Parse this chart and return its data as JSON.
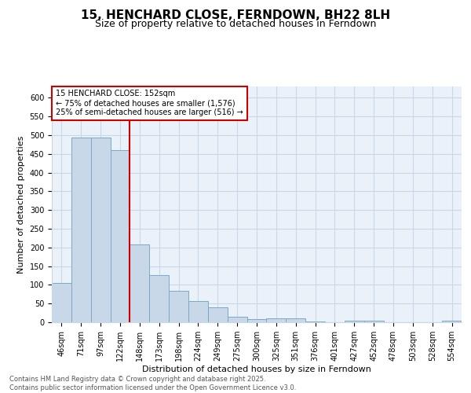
{
  "title": "15, HENCHARD CLOSE, FERNDOWN, BH22 8LH",
  "subtitle": "Size of property relative to detached houses in Ferndown",
  "xlabel": "Distribution of detached houses by size in Ferndown",
  "ylabel": "Number of detached properties",
  "categories": [
    "46sqm",
    "71sqm",
    "97sqm",
    "122sqm",
    "148sqm",
    "173sqm",
    "198sqm",
    "224sqm",
    "249sqm",
    "275sqm",
    "300sqm",
    "325sqm",
    "351sqm",
    "376sqm",
    "401sqm",
    "427sqm",
    "452sqm",
    "478sqm",
    "503sqm",
    "528sqm",
    "554sqm"
  ],
  "values": [
    106,
    493,
    493,
    460,
    208,
    125,
    83,
    57,
    40,
    14,
    9,
    11,
    11,
    3,
    0,
    5,
    5,
    0,
    0,
    0,
    5
  ],
  "bar_color": "#c8d8e8",
  "bar_edge_color": "#7aaac8",
  "bar_linewidth": 0.7,
  "vline_x": 3.5,
  "vline_color": "#cc0000",
  "annotation_box_text": "15 HENCHARD CLOSE: 152sqm\n← 75% of detached houses are smaller (1,576)\n25% of semi-detached houses are larger (516) →",
  "ylim": [
    0,
    630
  ],
  "yticks": [
    0,
    50,
    100,
    150,
    200,
    250,
    300,
    350,
    400,
    450,
    500,
    550,
    600
  ],
  "grid_color": "#c8d8e8",
  "bg_color": "#eaf1f8",
  "footer_text": "Contains HM Land Registry data © Crown copyright and database right 2025.\nContains public sector information licensed under the Open Government Licence v3.0.",
  "title_fontsize": 11,
  "subtitle_fontsize": 9,
  "axis_label_fontsize": 8,
  "tick_fontsize": 7,
  "annotation_fontsize": 7,
  "footer_fontsize": 6
}
